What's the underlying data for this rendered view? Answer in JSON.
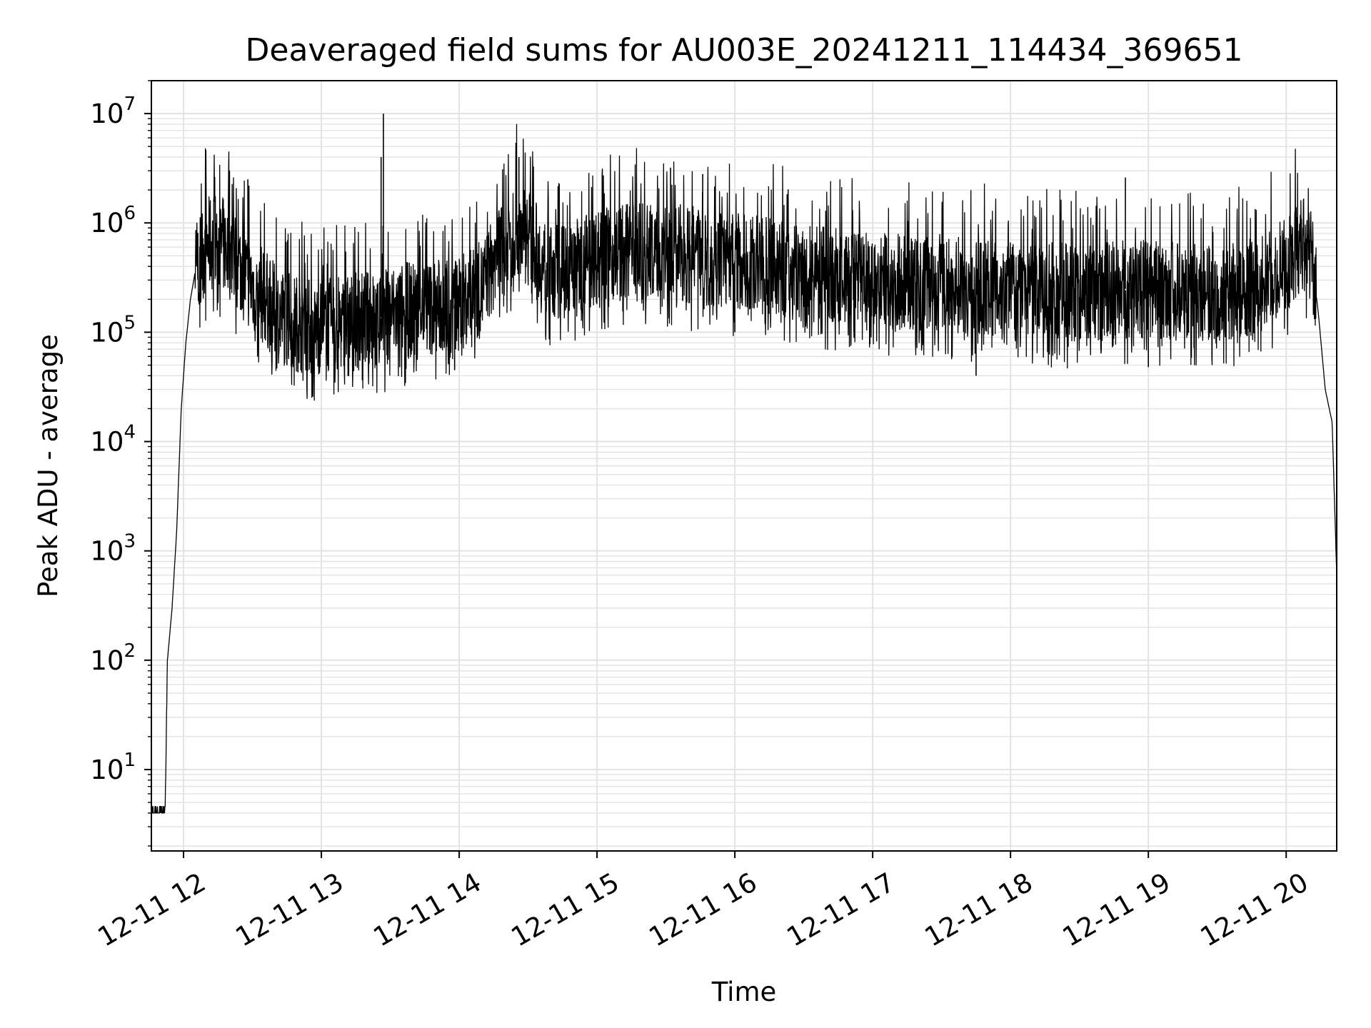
{
  "chart_data": {
    "type": "line",
    "title": "Deaveraged field sums for AU003E_20241211_114434_369651",
    "xlabel": "Time",
    "ylabel": "Peak ADU - average",
    "yscale": "log",
    "ylim": [
      1.8,
      20000000
    ],
    "xlim": [
      "2024-12-11 11:46",
      "2024-12-11 20:22"
    ],
    "x_ticks": [
      "12-11 12",
      "12-11 13",
      "12-11 14",
      "12-11 15",
      "12-11 16",
      "12-11 17",
      "12-11 18",
      "12-11 19",
      "12-11 20"
    ],
    "y_ticks": [
      {
        "base": "10",
        "exp": "1",
        "value": 10
      },
      {
        "base": "10",
        "exp": "2",
        "value": 100
      },
      {
        "base": "10",
        "exp": "3",
        "value": 1000
      },
      {
        "base": "10",
        "exp": "4",
        "value": 10000
      },
      {
        "base": "10",
        "exp": "5",
        "value": 100000
      },
      {
        "base": "10",
        "exp": "6",
        "value": 1000000
      },
      {
        "base": "10",
        "exp": "7",
        "value": 10000000
      }
    ],
    "grid": true,
    "line_color": "#000000",
    "grid_color": "#e3e3e3",
    "series": [
      {
        "x": [
          "2024-12-11 11:46",
          "2024-12-11 11:52",
          "2024-12-11 11:53",
          "2024-12-11 11:55",
          "2024-12-11 11:57",
          "2024-12-11 11:59",
          "2024-12-11 12:01",
          "2024-12-11 12:03",
          "2024-12-11 12:05",
          "2024-12-11 12:07",
          "2024-12-11 12:10",
          "2024-12-11 12:14",
          "2024-12-11 12:18",
          "2024-12-11 12:22",
          "2024-12-11 12:28",
          "2024-12-11 12:36",
          "2024-12-11 12:40",
          "2024-12-11 12:50",
          "2024-12-11 13:00",
          "2024-12-11 13:10",
          "2024-12-11 13:20",
          "2024-12-11 13:28",
          "2024-12-11 13:30",
          "2024-12-11 13:40",
          "2024-12-11 13:50",
          "2024-12-11 14:00",
          "2024-12-11 14:10",
          "2024-12-11 14:18",
          "2024-12-11 14:25",
          "2024-12-11 14:32",
          "2024-12-11 14:36",
          "2024-12-11 14:45",
          "2024-12-11 15:00",
          "2024-12-11 15:15",
          "2024-12-11 15:30",
          "2024-12-11 15:45",
          "2024-12-11 16:00",
          "2024-12-11 16:30",
          "2024-12-11 17:00",
          "2024-12-11 17:30",
          "2024-12-11 18:00",
          "2024-12-11 18:30",
          "2024-12-11 18:50",
          "2024-12-11 19:00",
          "2024-12-11 19:30",
          "2024-12-11 19:45",
          "2024-12-11 20:00",
          "2024-12-11 20:05",
          "2024-12-11 20:08",
          "2024-12-11 20:11",
          "2024-12-11 20:14",
          "2024-12-11 20:17",
          "2024-12-11 20:20",
          "2024-12-11 20:22"
        ],
        "y": [
          4,
          4,
          100,
          300,
          1500,
          20000,
          80000,
          200000,
          350000,
          500000,
          600000,
          700000,
          600000,
          500000,
          300000,
          200000,
          150000,
          120000,
          110000,
          120000,
          130000,
          140000,
          150000,
          160000,
          170000,
          180000,
          250000,
          600000,
          900000,
          700000,
          400000,
          350000,
          500000,
          550000,
          550000,
          500000,
          450000,
          350000,
          300000,
          280000,
          250000,
          230000,
          250000,
          250000,
          220000,
          260000,
          400000,
          600000,
          700000,
          500000,
          150000,
          30000,
          15000,
          600
        ]
      }
    ],
    "spikes": [
      {
        "x": "2024-12-11 12:20",
        "y": 3000000
      },
      {
        "x": "2024-12-11 12:28",
        "y": 2500000
      },
      {
        "x": "2024-12-11 13:27",
        "y": 10000000
      },
      {
        "x": "2024-12-11 13:26",
        "y": 4000000
      },
      {
        "x": "2024-12-11 14:26",
        "y": 4000000
      },
      {
        "x": "2024-12-11 15:32",
        "y": 3200000
      },
      {
        "x": "2024-12-11 15:46",
        "y": 2800000
      },
      {
        "x": "2024-12-11 18:50",
        "y": 2600000
      },
      {
        "x": "2024-12-11 16:00",
        "y": 100000
      },
      {
        "x": "2024-12-11 17:45",
        "y": 40000
      },
      {
        "x": "2024-12-11 13:58",
        "y": 45000
      },
      {
        "x": "2024-12-11 12:45",
        "y": 50000
      },
      {
        "x": "2024-12-11 19:00",
        "y": 48000
      }
    ]
  }
}
